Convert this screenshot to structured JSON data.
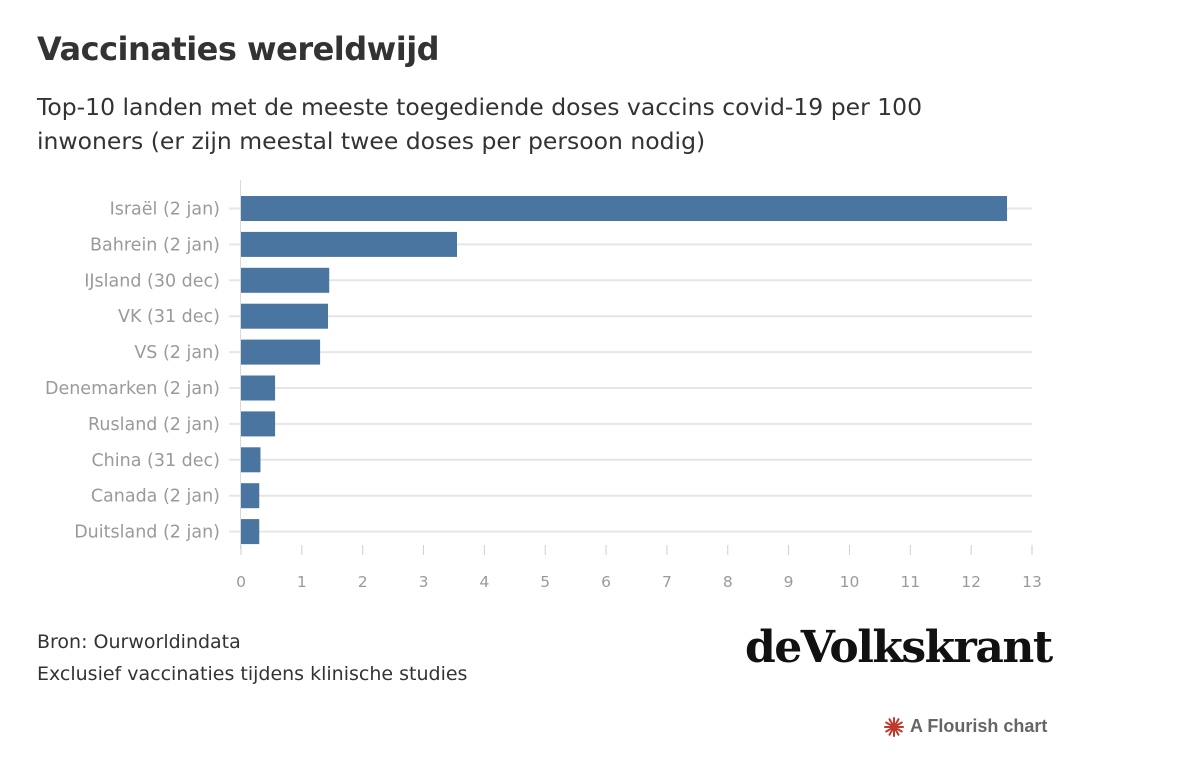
{
  "title": "Vaccinaties wereldwijd",
  "subtitle": "Top-10 landen met de meeste toegediende doses vaccins covid-19 per 100 inwoners (er zijn meestal twee doses per persoon nodig)",
  "chart_data": {
    "type": "bar",
    "orientation": "horizontal",
    "categories": [
      "Israël (2 jan)",
      "Bahrein (2 jan)",
      "IJsland (30 dec)",
      "VK (31 dec)",
      "VS (2 jan)",
      "Denemarken (2 jan)",
      "Rusland (2 jan)",
      "China (31 dec)",
      "Canada (2 jan)",
      "Duitsland (2 jan)"
    ],
    "values": [
      12.59,
      3.55,
      1.45,
      1.43,
      1.3,
      0.56,
      0.56,
      0.32,
      0.3,
      0.3
    ],
    "xlim": [
      0,
      13
    ],
    "xticks": [
      "0",
      "1",
      "2",
      "3",
      "4",
      "5",
      "6",
      "7",
      "8",
      "9",
      "10",
      "11",
      "12",
      "13"
    ],
    "bar_color": "#4a75a0",
    "grid": true
  },
  "footer": {
    "source": "Bron: Ourworldindata",
    "note": "Exclusief vaccinaties tijdens klinische studies"
  },
  "brand": "deVolkskrant",
  "flourish": {
    "label": "A Flourish chart",
    "icon": "flourish-star-icon",
    "icon_color": "#c0392b"
  }
}
